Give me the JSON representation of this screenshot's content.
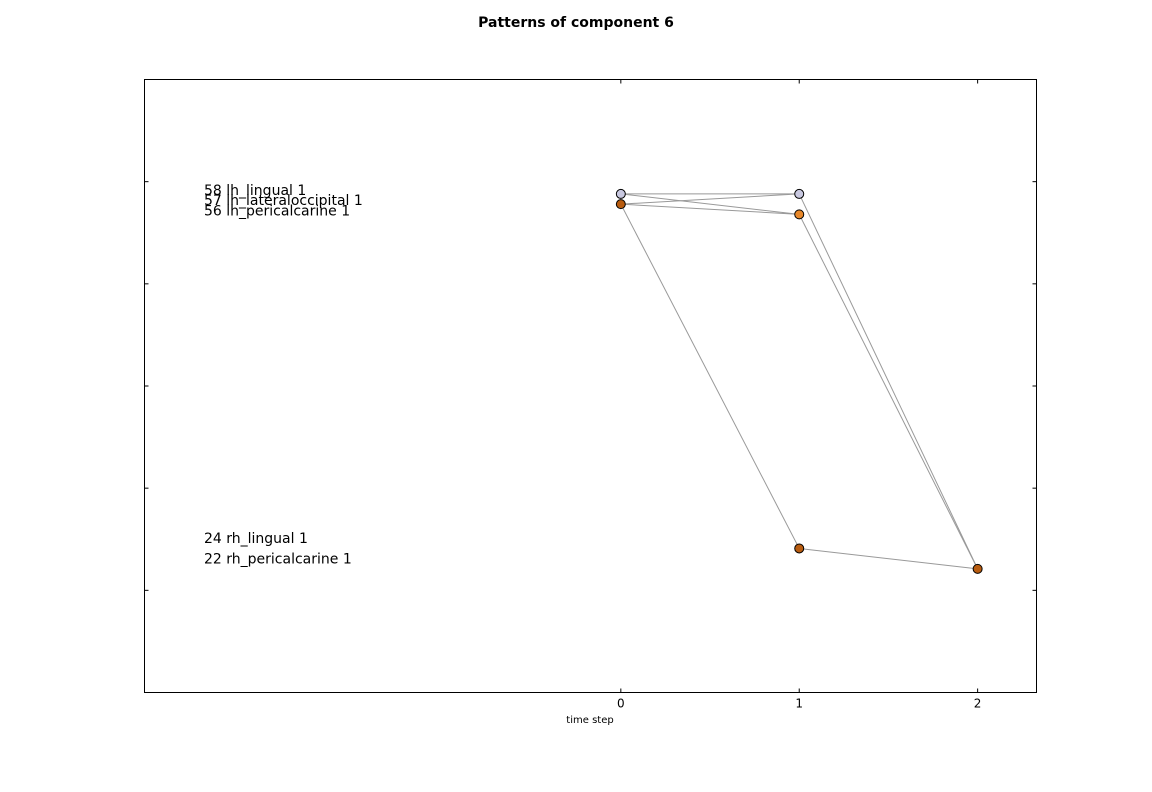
{
  "chart_data": {
    "type": "scatter",
    "title": "Patterns of component 6",
    "xlabel": "time step",
    "ylabel": "",
    "xlim": [
      -2.67,
      2.33
    ],
    "ylim": [
      0,
      6
    ],
    "x_ticks": [
      0,
      1,
      2
    ],
    "x_tick_labels": [
      "0",
      "1",
      "2"
    ],
    "y_ticks": [
      1,
      2,
      3,
      4,
      5
    ],
    "grid": false,
    "node_labels": [
      {
        "text": "58 lh_lingual 1",
        "y": 4.92
      },
      {
        "text": "57 lh_lateraloccipital 1",
        "y": 4.82
      },
      {
        "text": "56 lh_pericalcarine 1",
        "y": 4.72
      },
      {
        "text": "24 rh_lingual 1",
        "y": 1.51
      },
      {
        "text": "22 rh_pericalcarine 1",
        "y": 1.31
      }
    ],
    "nodes": [
      {
        "x": 0,
        "y": 4.88,
        "color": "#c8c8e0"
      },
      {
        "x": 0,
        "y": 4.78,
        "color": "#b85c10"
      },
      {
        "x": 1,
        "y": 4.88,
        "color": "#c8c8e0"
      },
      {
        "x": 1,
        "y": 4.68,
        "color": "#e8882a"
      },
      {
        "x": 1,
        "y": 1.41,
        "color": "#b85c10"
      },
      {
        "x": 2,
        "y": 1.21,
        "color": "#b85c10"
      }
    ],
    "edges": [
      {
        "from": [
          0,
          4.88
        ],
        "to": [
          1,
          4.88
        ]
      },
      {
        "from": [
          0,
          4.88
        ],
        "to": [
          1,
          4.68
        ]
      },
      {
        "from": [
          0,
          4.78
        ],
        "to": [
          1,
          4.88
        ]
      },
      {
        "from": [
          0,
          4.78
        ],
        "to": [
          1,
          4.68
        ]
      },
      {
        "from": [
          0,
          4.78
        ],
        "to": [
          1,
          1.41
        ]
      },
      {
        "from": [
          1,
          4.88
        ],
        "to": [
          2,
          1.21
        ]
      },
      {
        "from": [
          1,
          4.68
        ],
        "to": [
          2,
          1.21
        ]
      },
      {
        "from": [
          1,
          1.41
        ],
        "to": [
          2,
          1.21
        ]
      }
    ]
  }
}
